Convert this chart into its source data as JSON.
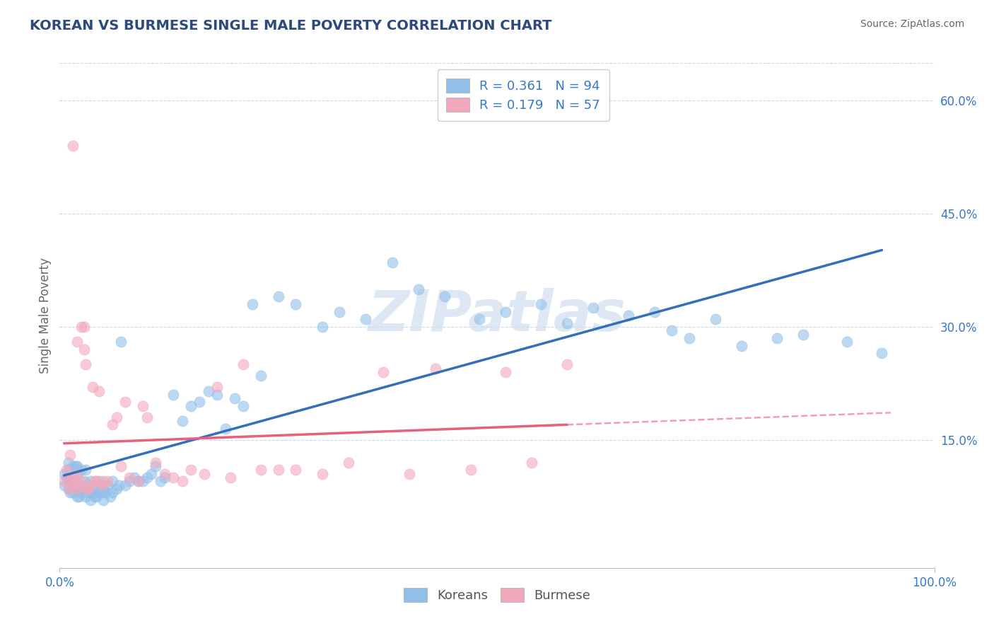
{
  "title": "KOREAN VS BURMESE SINGLE MALE POVERTY CORRELATION CHART",
  "source": "Source: ZipAtlas.com",
  "ylabel": "Single Male Poverty",
  "xlim": [
    0,
    1.0
  ],
  "ylim": [
    -0.02,
    0.65
  ],
  "xtick_labels": [
    "0.0%",
    "100.0%"
  ],
  "yticks": [
    0.15,
    0.3,
    0.45,
    0.6
  ],
  "ytick_labels": [
    "15.0%",
    "30.0%",
    "45.0%",
    "60.0%"
  ],
  "korean_color": "#92bfe8",
  "burmese_color": "#f2a8bc",
  "korean_line_color": "#3470b8",
  "burmese_line_color": "#e8607a",
  "korean_R": 0.361,
  "korean_N": 94,
  "burmese_R": 0.179,
  "burmese_N": 57,
  "watermark": "ZIPatlas",
  "watermark_color": "#d0dff0",
  "background_color": "#ffffff",
  "grid_color": "#c8d8ee",
  "title_color": "#2c4a7c",
  "axis_label_color": "#666666",
  "tick_color": "#3878c8",
  "korean_scatter_x": [
    0.005,
    0.005,
    0.008,
    0.01,
    0.01,
    0.01,
    0.01,
    0.012,
    0.012,
    0.015,
    0.015,
    0.015,
    0.018,
    0.018,
    0.018,
    0.02,
    0.02,
    0.02,
    0.02,
    0.02,
    0.022,
    0.025,
    0.025,
    0.025,
    0.028,
    0.028,
    0.03,
    0.03,
    0.03,
    0.032,
    0.035,
    0.035,
    0.035,
    0.038,
    0.04,
    0.04,
    0.042,
    0.045,
    0.045,
    0.048,
    0.05,
    0.05,
    0.052,
    0.055,
    0.058,
    0.06,
    0.06,
    0.065,
    0.068,
    0.07,
    0.075,
    0.08,
    0.085,
    0.09,
    0.095,
    0.1,
    0.105,
    0.11,
    0.115,
    0.12,
    0.13,
    0.14,
    0.15,
    0.16,
    0.17,
    0.18,
    0.19,
    0.2,
    0.21,
    0.22,
    0.23,
    0.25,
    0.27,
    0.3,
    0.32,
    0.35,
    0.38,
    0.41,
    0.44,
    0.48,
    0.51,
    0.55,
    0.58,
    0.61,
    0.65,
    0.68,
    0.7,
    0.72,
    0.75,
    0.78,
    0.82,
    0.85,
    0.9,
    0.94
  ],
  "korean_scatter_y": [
    0.09,
    0.105,
    0.1,
    0.085,
    0.095,
    0.11,
    0.12,
    0.08,
    0.095,
    0.08,
    0.09,
    0.115,
    0.085,
    0.095,
    0.115,
    0.075,
    0.085,
    0.09,
    0.105,
    0.115,
    0.075,
    0.08,
    0.09,
    0.11,
    0.085,
    0.095,
    0.075,
    0.085,
    0.11,
    0.08,
    0.07,
    0.08,
    0.095,
    0.085,
    0.075,
    0.09,
    0.075,
    0.08,
    0.095,
    0.08,
    0.07,
    0.085,
    0.08,
    0.09,
    0.075,
    0.08,
    0.095,
    0.085,
    0.09,
    0.28,
    0.09,
    0.095,
    0.1,
    0.095,
    0.095,
    0.1,
    0.105,
    0.115,
    0.095,
    0.1,
    0.21,
    0.175,
    0.195,
    0.2,
    0.215,
    0.21,
    0.165,
    0.205,
    0.195,
    0.33,
    0.235,
    0.34,
    0.33,
    0.3,
    0.32,
    0.31,
    0.385,
    0.35,
    0.34,
    0.31,
    0.32,
    0.33,
    0.305,
    0.325,
    0.315,
    0.32,
    0.295,
    0.285,
    0.31,
    0.275,
    0.285,
    0.29,
    0.28,
    0.265
  ],
  "burmese_scatter_x": [
    0.005,
    0.008,
    0.01,
    0.01,
    0.012,
    0.015,
    0.015,
    0.015,
    0.018,
    0.018,
    0.02,
    0.02,
    0.022,
    0.025,
    0.025,
    0.028,
    0.028,
    0.03,
    0.03,
    0.032,
    0.035,
    0.038,
    0.04,
    0.042,
    0.045,
    0.048,
    0.05,
    0.055,
    0.06,
    0.065,
    0.07,
    0.075,
    0.08,
    0.09,
    0.095,
    0.1,
    0.11,
    0.12,
    0.13,
    0.14,
    0.15,
    0.165,
    0.18,
    0.195,
    0.21,
    0.23,
    0.25,
    0.27,
    0.3,
    0.33,
    0.37,
    0.4,
    0.43,
    0.47,
    0.51,
    0.54,
    0.58
  ],
  "burmese_scatter_y": [
    0.095,
    0.11,
    0.085,
    0.1,
    0.13,
    0.09,
    0.1,
    0.54,
    0.085,
    0.095,
    0.105,
    0.28,
    0.09,
    0.095,
    0.3,
    0.3,
    0.27,
    0.085,
    0.25,
    0.085,
    0.09,
    0.22,
    0.095,
    0.095,
    0.215,
    0.09,
    0.095,
    0.095,
    0.17,
    0.18,
    0.115,
    0.2,
    0.1,
    0.095,
    0.195,
    0.18,
    0.12,
    0.105,
    0.1,
    0.095,
    0.11,
    0.105,
    0.22,
    0.1,
    0.25,
    0.11,
    0.11,
    0.11,
    0.105,
    0.12,
    0.24,
    0.105,
    0.245,
    0.11,
    0.24,
    0.12,
    0.25
  ]
}
